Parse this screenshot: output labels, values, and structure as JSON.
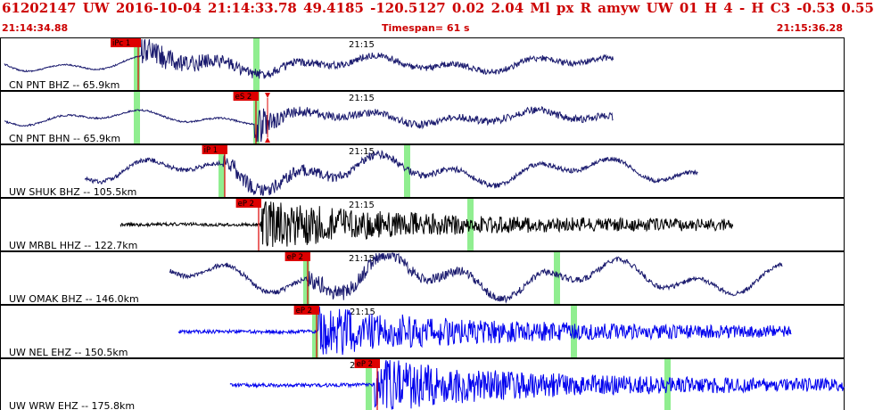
{
  "header": {
    "title": "61202147 UW 2016-10-04 21:14:33.78   49.4185 -120.5127   0.02  2.04 Ml  px  R amyw     UW 01  H   4  -  H C3   -0.53  0.55",
    "start_time": "21:14:34.88",
    "timespan_label": "Timespan=  61 s",
    "end_time": "21:15:36.28"
  },
  "colors": {
    "dark_trace": "#1a1a6e",
    "black_trace": "#000000",
    "blue_trace": "#0000ee",
    "pick_marker": "#dd0000",
    "window_band": "#90ee90",
    "title_text": "#cc0000"
  },
  "time_label": "21:15",
  "channels": [
    {
      "label": "CN PNT BHZ -- 65.9km",
      "pick": "iPc 1",
      "trace_color": "dark_trace"
    },
    {
      "label": "CN PNT BHN -- 65.9km",
      "pick": "eS 2",
      "trace_color": "dark_trace"
    },
    {
      "label": "UW SHUK BHZ -- 105.5km",
      "pick": "iP 1",
      "trace_color": "dark_trace"
    },
    {
      "label": "UW MRBL HHZ -- 122.7km",
      "pick": "eP 2",
      "trace_color": "black_trace"
    },
    {
      "label": "UW OMAK BHZ -- 146.0km",
      "pick": "eP 2",
      "trace_color": "dark_trace"
    },
    {
      "label": "UW NEL EHZ -- 150.5km",
      "pick": "eP 2",
      "trace_color": "blue_trace"
    },
    {
      "label": "UW WRW EHZ -- 175.8km",
      "pick": "eP 2",
      "trace_color": "blue_trace"
    }
  ]
}
